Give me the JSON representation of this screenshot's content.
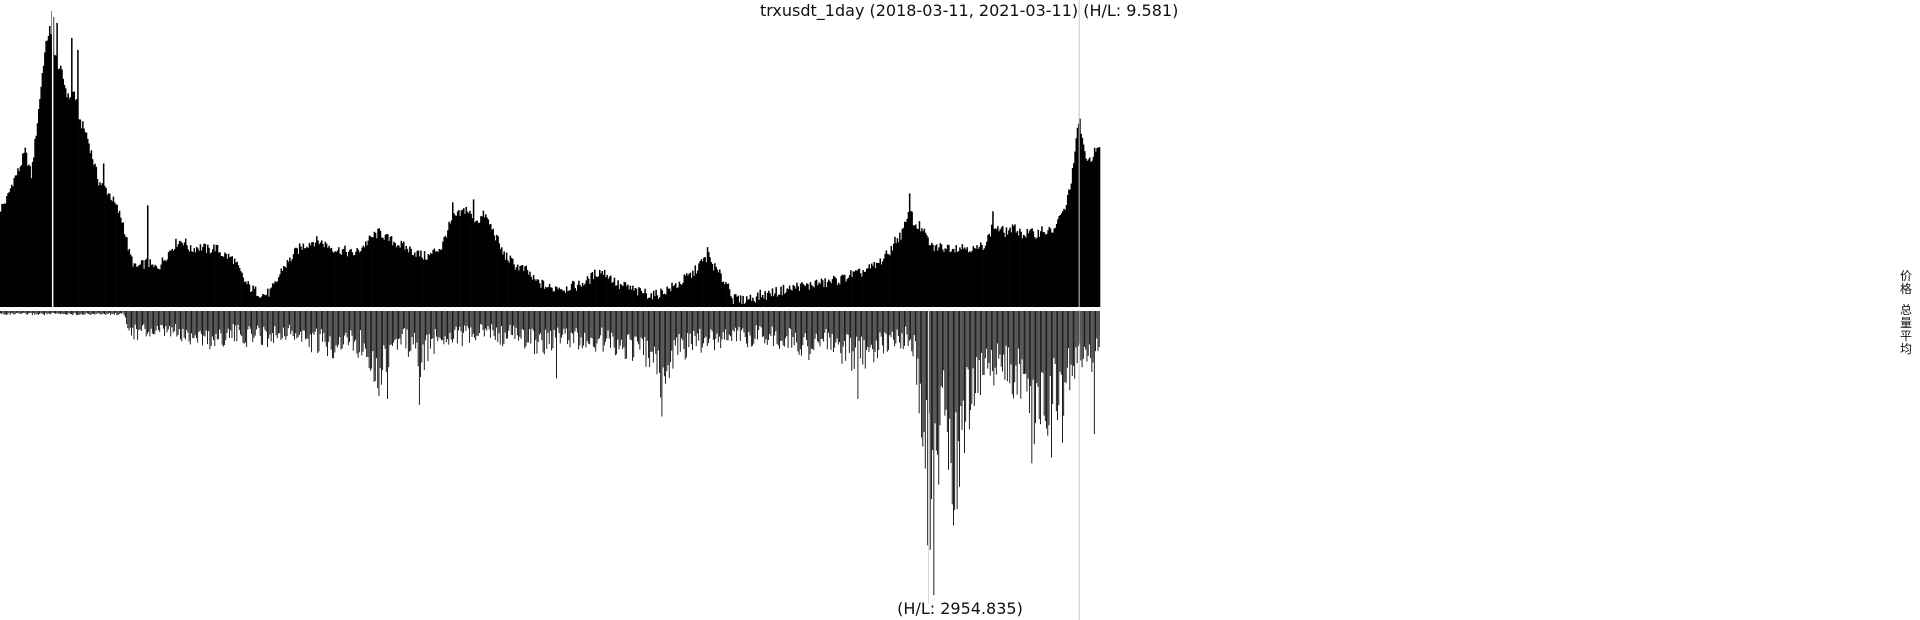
{
  "chart_data": {
    "type": "bar",
    "title": "trxusdt_1day (2018-03-11, 2021-03-11) (H/L: 9.581)",
    "date_range": [
      "2018-03-11",
      "2021-03-11"
    ],
    "legend": {
      "placement": "right",
      "entries": [
        "价格",
        "总量平均"
      ]
    },
    "series": [
      {
        "name": "价格",
        "hl_ratio": 9.581,
        "profile": [
          [
            0,
            0.33
          ],
          [
            5,
            0.36
          ],
          [
            10,
            0.42
          ],
          [
            15,
            0.46
          ],
          [
            20,
            0.52
          ],
          [
            25,
            0.44
          ],
          [
            30,
            0.62
          ],
          [
            35,
            0.82
          ],
          [
            38,
            0.9
          ],
          [
            40,
            0.93
          ],
          [
            42,
            0.87
          ],
          [
            45,
            0.83
          ],
          [
            50,
            0.78
          ],
          [
            55,
            0.7
          ],
          [
            60,
            0.72
          ],
          [
            65,
            0.62
          ],
          [
            70,
            0.58
          ],
          [
            75,
            0.5
          ],
          [
            80,
            0.42
          ],
          [
            85,
            0.4
          ],
          [
            90,
            0.37
          ],
          [
            95,
            0.33
          ],
          [
            100,
            0.28
          ],
          [
            105,
            0.18
          ],
          [
            110,
            0.13
          ],
          [
            115,
            0.14
          ],
          [
            120,
            0.15
          ],
          [
            125,
            0.13
          ],
          [
            130,
            0.14
          ],
          [
            135,
            0.17
          ],
          [
            140,
            0.2
          ],
          [
            145,
            0.22
          ],
          [
            150,
            0.22
          ],
          [
            155,
            0.19
          ],
          [
            160,
            0.2
          ],
          [
            165,
            0.2
          ],
          [
            170,
            0.19
          ],
          [
            175,
            0.2
          ],
          [
            180,
            0.18
          ],
          [
            185,
            0.17
          ],
          [
            190,
            0.16
          ],
          [
            195,
            0.12
          ],
          [
            200,
            0.08
          ],
          [
            205,
            0.06
          ],
          [
            210,
            0.05
          ],
          [
            215,
            0.04
          ],
          [
            220,
            0.05
          ],
          [
            225,
            0.08
          ],
          [
            230,
            0.13
          ],
          [
            235,
            0.15
          ],
          [
            240,
            0.18
          ],
          [
            245,
            0.2
          ],
          [
            250,
            0.21
          ],
          [
            255,
            0.22
          ],
          [
            260,
            0.22
          ],
          [
            265,
            0.21
          ],
          [
            270,
            0.2
          ],
          [
            275,
            0.19
          ],
          [
            280,
            0.19
          ],
          [
            285,
            0.18
          ],
          [
            290,
            0.18
          ],
          [
            295,
            0.2
          ],
          [
            300,
            0.22
          ],
          [
            305,
            0.24
          ],
          [
            310,
            0.25
          ],
          [
            315,
            0.23
          ],
          [
            320,
            0.22
          ],
          [
            325,
            0.21
          ],
          [
            330,
            0.2
          ],
          [
            335,
            0.19
          ],
          [
            340,
            0.18
          ],
          [
            345,
            0.17
          ],
          [
            350,
            0.17
          ],
          [
            355,
            0.19
          ],
          [
            360,
            0.2
          ],
          [
            365,
            0.26
          ],
          [
            370,
            0.3
          ],
          [
            375,
            0.31
          ],
          [
            380,
            0.33
          ],
          [
            385,
            0.3
          ],
          [
            390,
            0.29
          ],
          [
            395,
            0.31
          ],
          [
            400,
            0.27
          ],
          [
            405,
            0.23
          ],
          [
            410,
            0.18
          ],
          [
            415,
            0.16
          ],
          [
            420,
            0.14
          ],
          [
            425,
            0.13
          ],
          [
            430,
            0.12
          ],
          [
            435,
            0.09
          ],
          [
            440,
            0.08
          ],
          [
            445,
            0.07
          ],
          [
            450,
            0.06
          ],
          [
            455,
            0.07
          ],
          [
            460,
            0.06
          ],
          [
            465,
            0.07
          ],
          [
            470,
            0.07
          ],
          [
            475,
            0.08
          ],
          [
            480,
            0.09
          ],
          [
            485,
            0.11
          ],
          [
            490,
            0.12
          ],
          [
            495,
            0.11
          ],
          [
            500,
            0.09
          ],
          [
            505,
            0.07
          ],
          [
            510,
            0.07
          ],
          [
            515,
            0.06
          ],
          [
            520,
            0.05
          ],
          [
            525,
            0.05
          ],
          [
            530,
            0.04
          ],
          [
            535,
            0.04
          ],
          [
            540,
            0.05
          ],
          [
            545,
            0.06
          ],
          [
            550,
            0.07
          ],
          [
            555,
            0.08
          ],
          [
            560,
            0.1
          ],
          [
            565,
            0.11
          ],
          [
            570,
            0.14
          ],
          [
            575,
            0.16
          ],
          [
            578,
            0.17
          ],
          [
            580,
            0.15
          ],
          [
            585,
            0.12
          ],
          [
            590,
            0.09
          ],
          [
            595,
            0.07
          ],
          [
            598,
            0.02
          ],
          [
            600,
            0.03
          ],
          [
            605,
            0.02
          ],
          [
            610,
            0.03
          ],
          [
            615,
            0.03
          ],
          [
            620,
            0.04
          ],
          [
            625,
            0.04
          ],
          [
            630,
            0.05
          ],
          [
            635,
            0.05
          ],
          [
            640,
            0.06
          ],
          [
            645,
            0.06
          ],
          [
            650,
            0.07
          ],
          [
            655,
            0.07
          ],
          [
            660,
            0.07
          ],
          [
            665,
            0.08
          ],
          [
            670,
            0.08
          ],
          [
            675,
            0.08
          ],
          [
            680,
            0.09
          ],
          [
            685,
            0.09
          ],
          [
            690,
            0.1
          ],
          [
            695,
            0.11
          ],
          [
            700,
            0.11
          ],
          [
            705,
            0.12
          ],
          [
            710,
            0.13
          ],
          [
            715,
            0.14
          ],
          [
            720,
            0.16
          ],
          [
            725,
            0.18
          ],
          [
            730,
            0.22
          ],
          [
            735,
            0.24
          ],
          [
            740,
            0.29
          ],
          [
            743,
            0.33
          ],
          [
            745,
            0.28
          ],
          [
            750,
            0.27
          ],
          [
            755,
            0.24
          ],
          [
            760,
            0.2
          ],
          [
            765,
            0.2
          ],
          [
            770,
            0.2
          ],
          [
            775,
            0.2
          ],
          [
            780,
            0.2
          ],
          [
            785,
            0.2
          ],
          [
            790,
            0.2
          ],
          [
            795,
            0.19
          ],
          [
            800,
            0.2
          ],
          [
            805,
            0.22
          ],
          [
            810,
            0.27
          ],
          [
            815,
            0.26
          ],
          [
            820,
            0.25
          ],
          [
            825,
            0.26
          ],
          [
            830,
            0.26
          ],
          [
            835,
            0.24
          ],
          [
            840,
            0.25
          ],
          [
            845,
            0.24
          ],
          [
            850,
            0.26
          ],
          [
            855,
            0.25
          ],
          [
            860,
            0.26
          ],
          [
            865,
            0.3
          ],
          [
            870,
            0.34
          ],
          [
            875,
            0.45
          ],
          [
            878,
            0.55
          ],
          [
            880,
            0.62
          ],
          [
            883,
            0.57
          ],
          [
            886,
            0.48
          ],
          [
            890,
            0.5
          ],
          [
            895,
            0.53
          ],
          [
            897,
            0.52
          ]
        ],
        "spikes": [
          [
            42,
            0.99
          ],
          [
            43,
            0.97
          ],
          [
            46,
            0.95
          ],
          [
            58,
            0.9
          ],
          [
            63,
            0.86
          ],
          [
            84,
            0.48
          ],
          [
            120,
            0.34
          ],
          [
            369,
            0.35
          ],
          [
            386,
            0.36
          ],
          [
            577,
            0.2
          ],
          [
            742,
            0.38
          ],
          [
            810,
            0.32
          ],
          [
            881,
            0.63
          ]
        ]
      },
      {
        "name": "总量平均",
        "hl_ratio": 2954.835,
        "profile": [
          [
            0,
            0.01
          ],
          [
            20,
            0.01
          ],
          [
            40,
            0.01
          ],
          [
            60,
            0.01
          ],
          [
            80,
            0.01
          ],
          [
            100,
            0.01
          ],
          [
            105,
            0.05
          ],
          [
            110,
            0.08
          ],
          [
            120,
            0.07
          ],
          [
            130,
            0.08
          ],
          [
            140,
            0.07
          ],
          [
            150,
            0.09
          ],
          [
            160,
            0.08
          ],
          [
            170,
            0.1
          ],
          [
            180,
            0.09
          ],
          [
            190,
            0.08
          ],
          [
            200,
            0.09
          ],
          [
            210,
            0.08
          ],
          [
            220,
            0.09
          ],
          [
            230,
            0.07
          ],
          [
            240,
            0.08
          ],
          [
            250,
            0.1
          ],
          [
            260,
            0.11
          ],
          [
            270,
            0.12
          ],
          [
            280,
            0.1
          ],
          [
            290,
            0.11
          ],
          [
            300,
            0.13
          ],
          [
            305,
            0.18
          ],
          [
            310,
            0.2
          ],
          [
            315,
            0.16
          ],
          [
            320,
            0.12
          ],
          [
            330,
            0.1
          ],
          [
            340,
            0.14
          ],
          [
            345,
            0.18
          ],
          [
            350,
            0.12
          ],
          [
            360,
            0.09
          ],
          [
            370,
            0.08
          ],
          [
            380,
            0.09
          ],
          [
            390,
            0.08
          ],
          [
            400,
            0.07
          ],
          [
            410,
            0.09
          ],
          [
            420,
            0.08
          ],
          [
            430,
            0.1
          ],
          [
            440,
            0.11
          ],
          [
            450,
            0.1
          ],
          [
            460,
            0.09
          ],
          [
            470,
            0.1
          ],
          [
            480,
            0.11
          ],
          [
            490,
            0.1
          ],
          [
            500,
            0.11
          ],
          [
            510,
            0.12
          ],
          [
            520,
            0.13
          ],
          [
            530,
            0.15
          ],
          [
            535,
            0.2
          ],
          [
            540,
            0.24
          ],
          [
            545,
            0.2
          ],
          [
            550,
            0.14
          ],
          [
            560,
            0.12
          ],
          [
            570,
            0.11
          ],
          [
            580,
            0.1
          ],
          [
            590,
            0.09
          ],
          [
            600,
            0.08
          ],
          [
            610,
            0.09
          ],
          [
            620,
            0.08
          ],
          [
            630,
            0.09
          ],
          [
            640,
            0.1
          ],
          [
            650,
            0.11
          ],
          [
            660,
            0.12
          ],
          [
            670,
            0.1
          ],
          [
            680,
            0.12
          ],
          [
            690,
            0.14
          ],
          [
            700,
            0.16
          ],
          [
            710,
            0.13
          ],
          [
            720,
            0.12
          ],
          [
            730,
            0.1
          ],
          [
            740,
            0.09
          ],
          [
            745,
            0.12
          ],
          [
            750,
            0.25
          ],
          [
            755,
            0.4
          ],
          [
            758,
            0.55
          ],
          [
            760,
            0.65
          ],
          [
            762,
            0.6
          ],
          [
            765,
            0.45
          ],
          [
            770,
            0.35
          ],
          [
            775,
            0.5
          ],
          [
            780,
            0.55
          ],
          [
            785,
            0.45
          ],
          [
            790,
            0.3
          ],
          [
            795,
            0.25
          ],
          [
            800,
            0.22
          ],
          [
            810,
            0.18
          ],
          [
            820,
            0.2
          ],
          [
            830,
            0.22
          ],
          [
            840,
            0.28
          ],
          [
            845,
            0.35
          ],
          [
            850,
            0.3
          ],
          [
            855,
            0.32
          ],
          [
            860,
            0.28
          ],
          [
            865,
            0.3
          ],
          [
            870,
            0.25
          ],
          [
            875,
            0.2
          ],
          [
            880,
            0.16
          ],
          [
            885,
            0.15
          ],
          [
            890,
            0.18
          ],
          [
            895,
            0.14
          ],
          [
            897,
            0.12
          ]
        ],
        "spikes": [
          [
            309,
            0.29
          ],
          [
            316,
            0.3
          ],
          [
            342,
            0.32
          ],
          [
            454,
            0.23
          ],
          [
            540,
            0.36
          ],
          [
            700,
            0.3
          ],
          [
            757,
            0.8
          ],
          [
            762,
            0.97
          ],
          [
            777,
            0.66
          ],
          [
            783,
            0.6
          ],
          [
            842,
            0.52
          ],
          [
            858,
            0.5
          ],
          [
            867,
            0.45
          ],
          [
            893,
            0.42
          ]
        ]
      }
    ],
    "markers": [
      {
        "series": "价格",
        "x": 43
      },
      {
        "series": "总量平均",
        "x": 758
      },
      {
        "series": "all",
        "x": 881
      }
    ]
  },
  "labels": {
    "title": "trxusdt_1day (2018-03-11, 2021-03-11) (H/L: 9.581)",
    "volume_hl": "(H/L: 2954.835)",
    "legend_price": "价格",
    "legend_volume": "总量平均"
  }
}
